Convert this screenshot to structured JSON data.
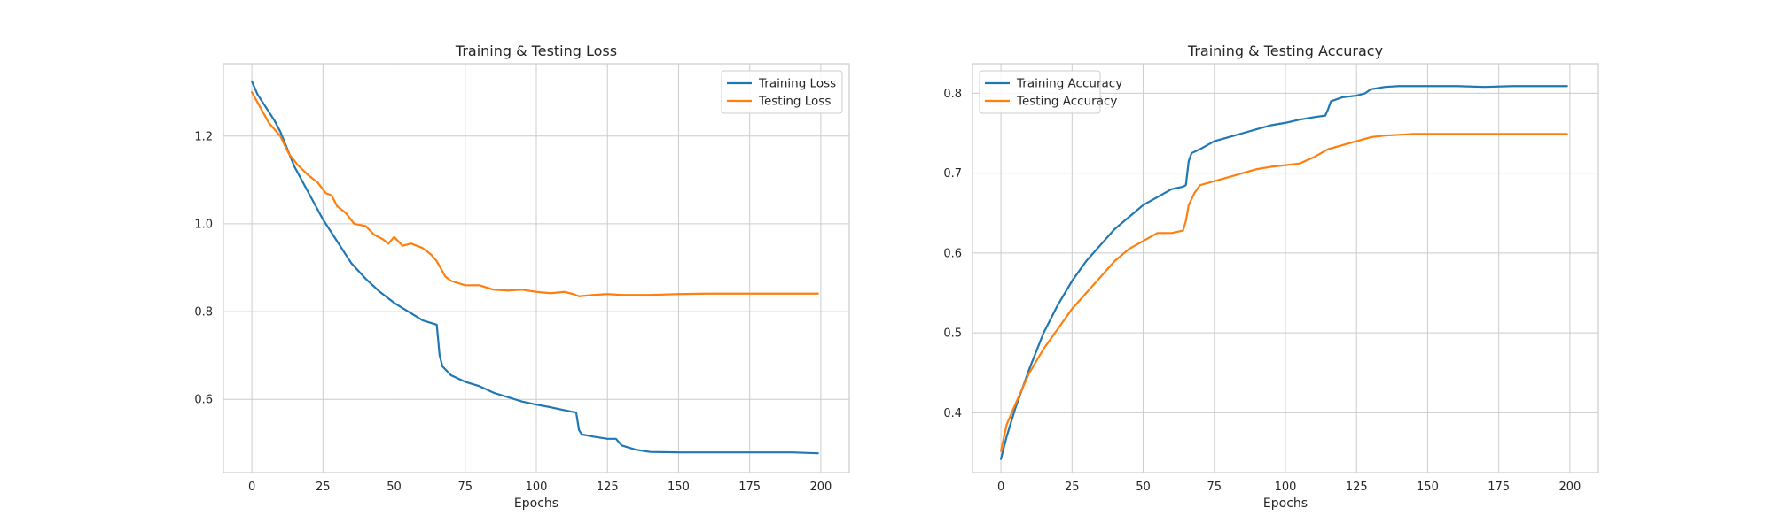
{
  "chart_data": [
    {
      "type": "line",
      "title": "Training & Testing Loss",
      "xlabel": "Epochs",
      "ylabel": "",
      "xlim": [
        -10,
        210
      ],
      "ylim": [
        0.433,
        1.365
      ],
      "xticks": [
        0,
        25,
        50,
        75,
        100,
        125,
        150,
        175,
        200
      ],
      "yticks": [
        0.6,
        0.8,
        1.0,
        1.2
      ],
      "ytick_labels": [
        "0.6",
        "0.8",
        "1.0",
        "1.2"
      ],
      "grid": true,
      "legend": "top-right",
      "series": [
        {
          "name": "Training Loss",
          "color": "#1f77b4",
          "x": [
            0,
            2,
            5,
            8,
            10,
            15,
            20,
            25,
            30,
            35,
            40,
            45,
            50,
            55,
            60,
            64,
            65,
            66,
            67,
            70,
            75,
            80,
            85,
            90,
            95,
            100,
            105,
            110,
            113,
            114,
            115,
            116,
            120,
            125,
            128,
            130,
            135,
            140,
            150,
            160,
            170,
            180,
            190,
            199
          ],
          "y": [
            1.325,
            1.295,
            1.265,
            1.235,
            1.21,
            1.13,
            1.07,
            1.01,
            0.96,
            0.91,
            0.875,
            0.845,
            0.82,
            0.8,
            0.78,
            0.772,
            0.77,
            0.7,
            0.675,
            0.655,
            0.64,
            0.63,
            0.615,
            0.605,
            0.595,
            0.588,
            0.582,
            0.575,
            0.571,
            0.57,
            0.53,
            0.52,
            0.515,
            0.51,
            0.51,
            0.495,
            0.485,
            0.48,
            0.479,
            0.479,
            0.479,
            0.479,
            0.479,
            0.477
          ]
        },
        {
          "name": "Testing Loss",
          "color": "#ff7f0e",
          "x": [
            0,
            3,
            6,
            10,
            13,
            16,
            20,
            23,
            26,
            28,
            30,
            33,
            36,
            40,
            43,
            46,
            48,
            50,
            53,
            56,
            60,
            62,
            63,
            65,
            68,
            70,
            75,
            80,
            85,
            90,
            95,
            100,
            105,
            110,
            113,
            115,
            120,
            125,
            130,
            140,
            150,
            160,
            180,
            199
          ],
          "y": [
            1.3,
            1.265,
            1.23,
            1.2,
            1.16,
            1.135,
            1.11,
            1.095,
            1.07,
            1.065,
            1.04,
            1.025,
            1.0,
            0.995,
            0.975,
            0.965,
            0.955,
            0.97,
            0.95,
            0.955,
            0.945,
            0.935,
            0.93,
            0.915,
            0.88,
            0.87,
            0.86,
            0.86,
            0.85,
            0.848,
            0.85,
            0.845,
            0.842,
            0.845,
            0.84,
            0.835,
            0.838,
            0.84,
            0.838,
            0.838,
            0.84,
            0.841,
            0.841,
            0.841
          ]
        }
      ]
    },
    {
      "type": "line",
      "title": "Training & Testing Accuracy",
      "xlabel": "Epochs",
      "ylabel": "",
      "xlim": [
        -10,
        210
      ],
      "ylim": [
        0.325,
        0.837
      ],
      "xticks": [
        0,
        25,
        50,
        75,
        100,
        125,
        150,
        175,
        200
      ],
      "yticks": [
        0.4,
        0.5,
        0.6,
        0.7,
        0.8
      ],
      "ytick_labels": [
        "0.4",
        "0.5",
        "0.6",
        "0.7",
        "0.8"
      ],
      "grid": true,
      "legend": "top-left",
      "series": [
        {
          "name": "Training Accuracy",
          "color": "#1f77b4",
          "x": [
            0,
            2,
            5,
            10,
            15,
            20,
            25,
            30,
            35,
            40,
            45,
            50,
            55,
            60,
            64,
            65,
            66,
            67,
            70,
            75,
            80,
            85,
            90,
            95,
            100,
            105,
            110,
            114,
            115,
            116,
            120,
            125,
            128,
            130,
            135,
            140,
            150,
            160,
            170,
            180,
            190,
            199
          ],
          "y": [
            0.342,
            0.37,
            0.405,
            0.455,
            0.5,
            0.535,
            0.565,
            0.59,
            0.61,
            0.63,
            0.645,
            0.66,
            0.67,
            0.68,
            0.683,
            0.685,
            0.715,
            0.725,
            0.73,
            0.74,
            0.745,
            0.75,
            0.755,
            0.76,
            0.763,
            0.767,
            0.77,
            0.772,
            0.78,
            0.79,
            0.795,
            0.797,
            0.8,
            0.805,
            0.808,
            0.809,
            0.809,
            0.809,
            0.808,
            0.809,
            0.809,
            0.809
          ]
        },
        {
          "name": "Testing Accuracy",
          "color": "#ff7f0e",
          "x": [
            0,
            2,
            5,
            10,
            15,
            20,
            25,
            30,
            35,
            40,
            45,
            50,
            55,
            60,
            64,
            65,
            66,
            68,
            70,
            75,
            80,
            85,
            90,
            95,
            100,
            105,
            110,
            115,
            120,
            125,
            130,
            135,
            140,
            145,
            150,
            160,
            170,
            180,
            190,
            199
          ],
          "y": [
            0.352,
            0.385,
            0.41,
            0.45,
            0.48,
            0.505,
            0.53,
            0.55,
            0.57,
            0.59,
            0.605,
            0.615,
            0.625,
            0.625,
            0.628,
            0.64,
            0.66,
            0.675,
            0.685,
            0.69,
            0.695,
            0.7,
            0.705,
            0.708,
            0.71,
            0.712,
            0.72,
            0.73,
            0.735,
            0.74,
            0.745,
            0.747,
            0.748,
            0.749,
            0.749,
            0.749,
            0.749,
            0.749,
            0.749,
            0.749
          ]
        }
      ]
    }
  ]
}
